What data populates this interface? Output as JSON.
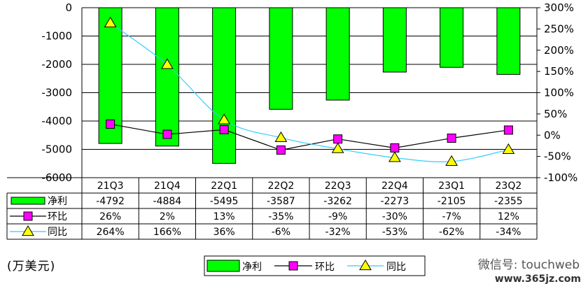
{
  "chart_data": {
    "type": "bar",
    "categories": [
      "21Q3",
      "21Q4",
      "22Q1",
      "22Q2",
      "22Q3",
      "22Q4",
      "23Q1",
      "23Q2"
    ],
    "series": [
      {
        "name": "净利",
        "type": "bar",
        "axis": "left",
        "color": "#00ff00",
        "values": [
          -4792,
          -4884,
          -5495,
          -3587,
          -3262,
          -2273,
          -2105,
          -2355
        ],
        "labels": [
          "-4792",
          "-4884",
          "-5495",
          "-3587",
          "-3262",
          "-2273",
          "-2105",
          "-2355"
        ]
      },
      {
        "name": "环比",
        "type": "line",
        "axis": "right",
        "color": "#000000",
        "marker": "square",
        "marker_color": "#ff00ff",
        "values": [
          26,
          2,
          13,
          -35,
          -9,
          -30,
          -7,
          12
        ],
        "labels": [
          "26%",
          "2%",
          "13%",
          "-35%",
          "-9%",
          "-30%",
          "-7%",
          "12%"
        ]
      },
      {
        "name": "同比",
        "type": "line",
        "axis": "right",
        "color": "#33ccff",
        "marker": "triangle",
        "marker_color": "#ffff00",
        "values": [
          264,
          166,
          36,
          -6,
          -32,
          -53,
          -62,
          -34
        ],
        "labels": [
          "264%",
          "166%",
          "36%",
          "-6%",
          "-32%",
          "-53%",
          "-62%",
          "-34%"
        ]
      }
    ],
    "y_left": {
      "range": [
        -6000,
        0
      ],
      "ticks": [
        "-6000",
        "-5000",
        "-4000",
        "-3000",
        "-2000",
        "-1000",
        "0"
      ]
    },
    "y_right": {
      "range": [
        -100,
        300
      ],
      "ticks": [
        "-100%",
        "-50%",
        "0%",
        "50%",
        "100%",
        "150%",
        "200%",
        "250%",
        "300%"
      ]
    },
    "grid": true,
    "legend_position": "bottom",
    "unit_label": "(万美元)"
  },
  "watermark": {
    "text": "微信号: touchweb",
    "url": "www.365jz.com"
  }
}
